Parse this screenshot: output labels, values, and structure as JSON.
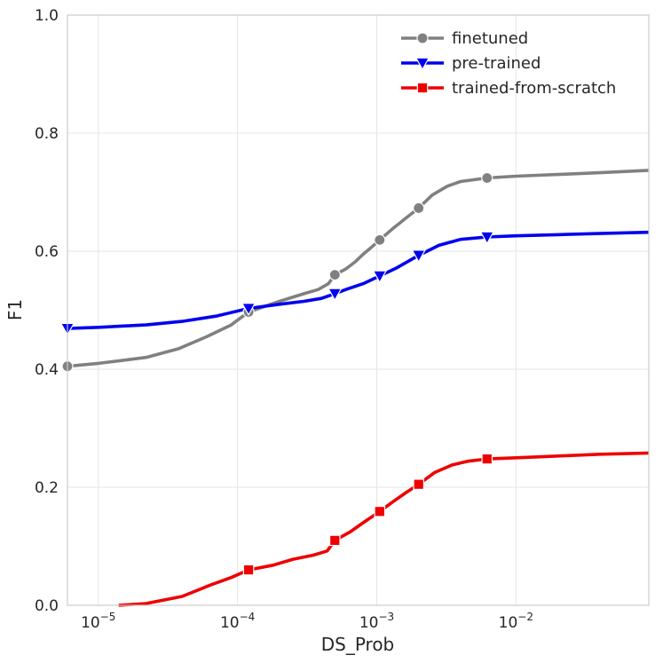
{
  "chart_data": {
    "type": "line",
    "title": "",
    "xlabel": "DS_Prob",
    "ylabel": "F1",
    "xscale": "log",
    "xlim": [
      6e-06,
      0.09
    ],
    "ylim": [
      0,
      1
    ],
    "x_ticks": [
      {
        "value": 1e-05,
        "base": "10",
        "exp": "−5"
      },
      {
        "value": 0.0001,
        "base": "10",
        "exp": "−4"
      },
      {
        "value": 0.001,
        "base": "10",
        "exp": "−3"
      },
      {
        "value": 0.01,
        "base": "10",
        "exp": "−2"
      }
    ],
    "y_ticks": [
      "0.0",
      "0.2",
      "0.4",
      "0.6",
      "0.8",
      "1.0"
    ],
    "grid": true,
    "legend_position": "top-right",
    "series": [
      {
        "name": "finetuned",
        "color": "#808080",
        "marker": "circle",
        "x": [
          6e-06,
          1e-05,
          2.2e-05,
          3.8e-05,
          6e-05,
          9e-05,
          0.00012,
          0.0002,
          0.0003,
          0.00038,
          0.00045,
          0.0005,
          0.0006,
          0.0007,
          0.0008,
          0.0009,
          0.00105,
          0.0013,
          0.0016,
          0.002,
          0.0025,
          0.0032,
          0.004,
          0.0062,
          0.01,
          0.02,
          0.04,
          0.09
        ],
        "y": [
          0.405,
          0.41,
          0.42,
          0.435,
          0.455,
          0.475,
          0.497,
          0.515,
          0.528,
          0.535,
          0.545,
          0.56,
          0.57,
          0.582,
          0.595,
          0.605,
          0.619,
          0.638,
          0.655,
          0.673,
          0.695,
          0.71,
          0.718,
          0.724,
          0.727,
          0.73,
          0.733,
          0.737
        ],
        "marker_x": [
          6e-06,
          0.00012,
          0.0005,
          0.00105,
          0.002,
          0.0062
        ],
        "marker_y": [
          0.405,
          0.497,
          0.56,
          0.619,
          0.673,
          0.724
        ]
      },
      {
        "name": "pre-trained",
        "color": "#0000ee",
        "marker": "triangle-down",
        "x": [
          6e-06,
          1e-05,
          2.2e-05,
          4e-05,
          7e-05,
          0.00012,
          0.0002,
          0.0003,
          0.0004,
          0.0005,
          0.0006,
          0.0008,
          0.00105,
          0.0014,
          0.002,
          0.0028,
          0.004,
          0.0062,
          0.01,
          0.02,
          0.04,
          0.09
        ],
        "y": [
          0.469,
          0.471,
          0.475,
          0.481,
          0.49,
          0.503,
          0.51,
          0.515,
          0.52,
          0.528,
          0.535,
          0.545,
          0.558,
          0.572,
          0.593,
          0.61,
          0.62,
          0.624,
          0.626,
          0.628,
          0.63,
          0.632
        ],
        "marker_x": [
          6e-06,
          0.00012,
          0.0005,
          0.00105,
          0.002,
          0.0062
        ],
        "marker_y": [
          0.469,
          0.503,
          0.528,
          0.558,
          0.593,
          0.624
        ]
      },
      {
        "name": "trained-from-scratch",
        "color": "#ee0000",
        "marker": "square",
        "x": [
          1.4e-05,
          2.2e-05,
          4e-05,
          6.5e-05,
          9e-05,
          0.00012,
          0.00018,
          0.00025,
          0.00035,
          0.00044,
          0.0005,
          0.00065,
          0.0008,
          0.00105,
          0.0013,
          0.0016,
          0.002,
          0.0026,
          0.0035,
          0.0045,
          0.0062,
          0.01,
          0.02,
          0.04,
          0.09
        ],
        "y": [
          0.0,
          0.003,
          0.015,
          0.035,
          0.047,
          0.06,
          0.068,
          0.078,
          0.085,
          0.092,
          0.11,
          0.125,
          0.14,
          0.159,
          0.175,
          0.19,
          0.205,
          0.225,
          0.238,
          0.244,
          0.248,
          0.25,
          0.253,
          0.256,
          0.258
        ],
        "marker_x": [
          0.00012,
          0.0005,
          0.00105,
          0.002,
          0.0062
        ],
        "marker_y": [
          0.06,
          0.11,
          0.159,
          0.205,
          0.248
        ]
      }
    ]
  }
}
